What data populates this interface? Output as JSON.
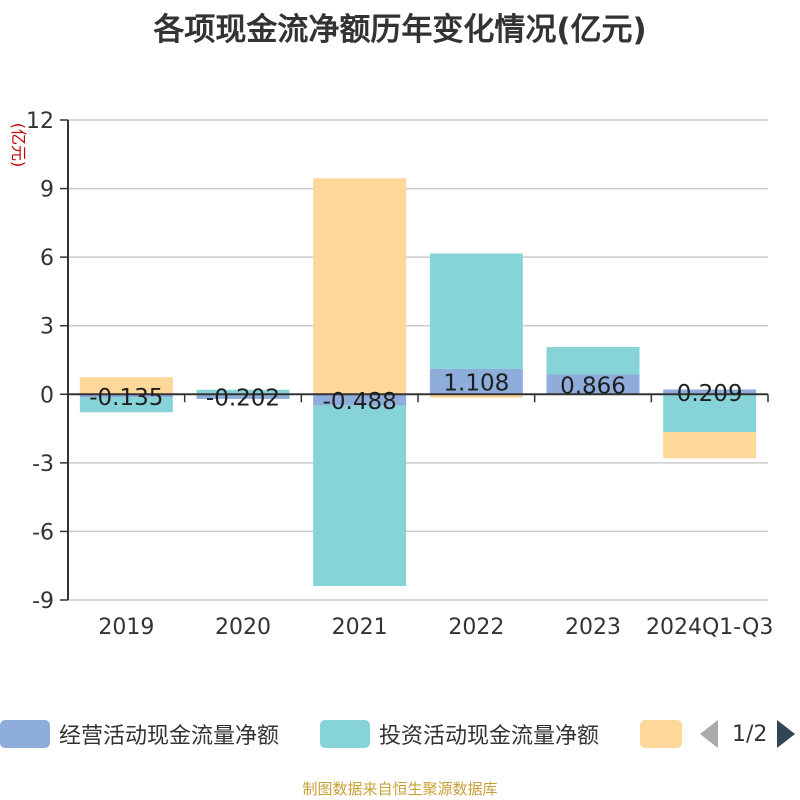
{
  "chart_data": {
    "type": "bar",
    "stacked": true,
    "title": "各项现金流净额历年变化情况(亿元)",
    "ylabel": "(亿元)",
    "xlabel": "",
    "ylim": [
      -9,
      12
    ],
    "yticks": [
      12,
      9,
      6,
      3,
      0,
      -3,
      -6,
      -9
    ],
    "grid": true,
    "categories": [
      "2019",
      "2020",
      "2021",
      "2022",
      "2023",
      "2024Q1-Q3"
    ],
    "series": [
      {
        "name": "经营活动现金流量净额",
        "color": "#8eadda",
        "values": [
          -0.135,
          -0.202,
          -0.488,
          1.108,
          0.866,
          0.209
        ],
        "data_labels": [
          "-0.135",
          "-0.202",
          "-0.488",
          "1.108",
          "0.866",
          "0.209"
        ]
      },
      {
        "name": "投资活动现金流量净额",
        "color": "#86d4d7",
        "values": [
          -0.65,
          0.2,
          -7.9,
          5.05,
          1.2,
          -1.65
        ]
      },
      {
        "name": "",
        "color": "#fdd899",
        "values": [
          0.75,
          0.0,
          9.45,
          -0.15,
          0.0,
          -1.15
        ]
      }
    ],
    "legend_position": "bottom"
  },
  "legend": {
    "page": "1/2"
  },
  "ylabel_color": "#c00000",
  "source": "制图数据来自恒生聚源数据库"
}
